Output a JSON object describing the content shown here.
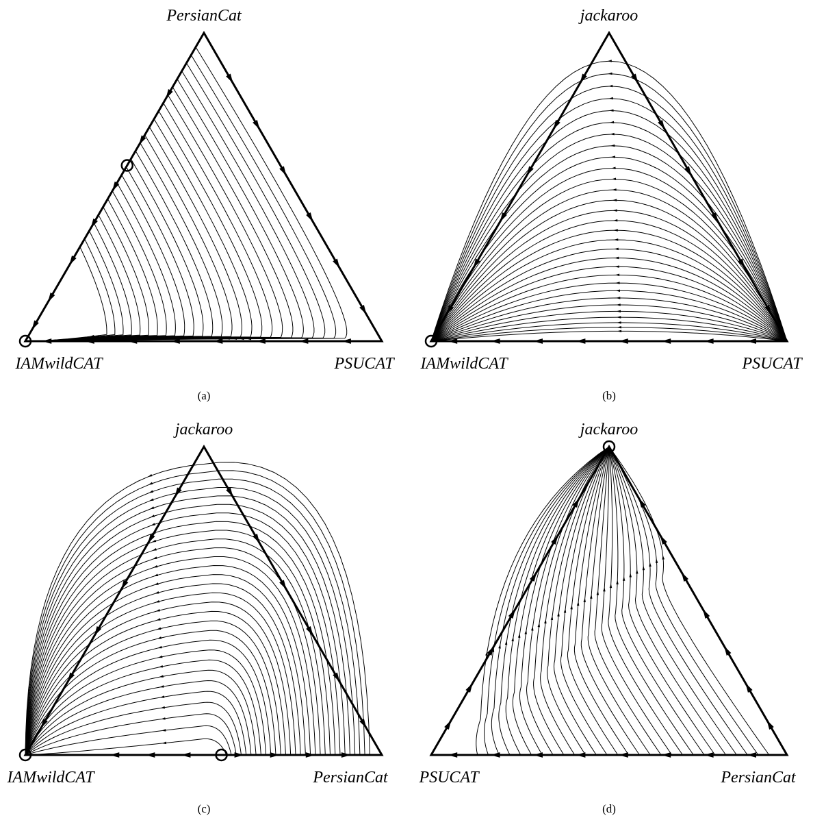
{
  "panels": [
    {
      "caption": "(a)",
      "top_label": "PersianCat",
      "left_label": "IAMwildCAT",
      "right_label": "PSUCAT",
      "rest_points": [
        "left",
        "left-edge-upper"
      ],
      "flow": "toward-left"
    },
    {
      "caption": "(b)",
      "top_label": "jackaroo",
      "left_label": "IAMwildCAT",
      "right_label": "PSUCAT",
      "rest_points": [
        "left"
      ],
      "flow": "toward-left"
    },
    {
      "caption": "(c)",
      "top_label": "jackaroo",
      "left_label": "IAMwildCAT",
      "right_label": "PersianCat",
      "rest_points": [
        "left",
        "bottom-mid"
      ],
      "flow": "toward-left"
    },
    {
      "caption": "(d)",
      "top_label": "jackaroo",
      "left_label": "PSUCAT",
      "right_label": "PersianCat",
      "rest_points": [
        "top"
      ],
      "flow": "toward-top"
    }
  ],
  "style": {
    "line_color": "#000000",
    "background": "#ffffff"
  }
}
